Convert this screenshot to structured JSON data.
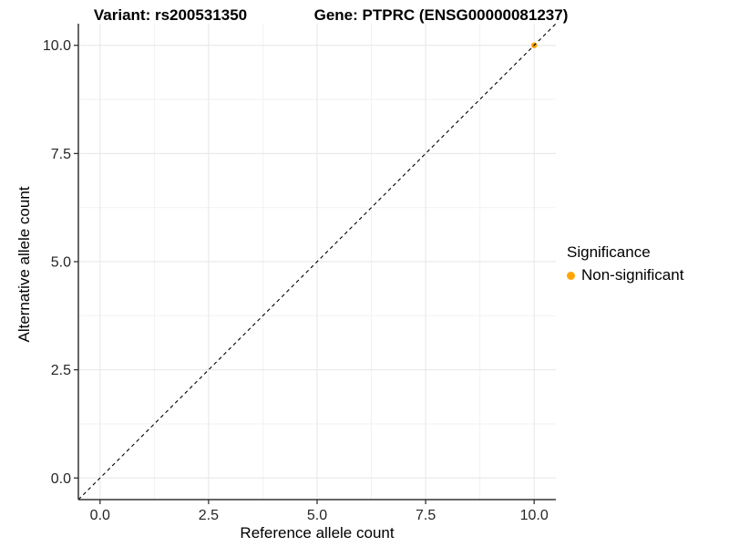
{
  "chart_data": {
    "type": "scatter",
    "title_left": "Variant: rs200531350",
    "title_right": "Gene: PTPRC (ENSG00000081237)",
    "xlabel": "Reference allele count",
    "ylabel": "Alternative allele count",
    "xlim": [
      -0.5,
      10.5
    ],
    "ylim": [
      -0.5,
      10.5
    ],
    "x_ticks": [
      0,
      2.5,
      5,
      7.5,
      10
    ],
    "x_tick_labels": [
      "0.0",
      "2.5",
      "5.0",
      "7.5",
      "10.0"
    ],
    "y_ticks": [
      0,
      2.5,
      5,
      7.5,
      10
    ],
    "y_tick_labels": [
      "0.0",
      "2.5",
      "5.0",
      "7.5",
      "10.0"
    ],
    "x_minor_ticks": [
      1.25,
      3.75,
      6.25,
      8.75
    ],
    "y_minor_ticks": [
      1.25,
      3.75,
      6.25,
      8.75
    ],
    "grid": {
      "major_color": "#E6E6E6",
      "minor_color": "#F2F2F2"
    },
    "axis_color": "#333333",
    "tick_label_color": "#262626",
    "identity_line": {
      "style": "dashed",
      "from": [
        -0.5,
        -0.5
      ],
      "to": [
        10.5,
        10.5
      ],
      "color": "#000000"
    },
    "series": [
      {
        "name": "Non-significant",
        "color": "#FFA500",
        "points": [
          {
            "x": 10,
            "y": 10
          }
        ]
      }
    ],
    "legend": {
      "title": "Significance",
      "position": "right",
      "items": [
        {
          "label": "Non-significant",
          "color": "#FFA500",
          "marker": "circle"
        }
      ]
    }
  }
}
